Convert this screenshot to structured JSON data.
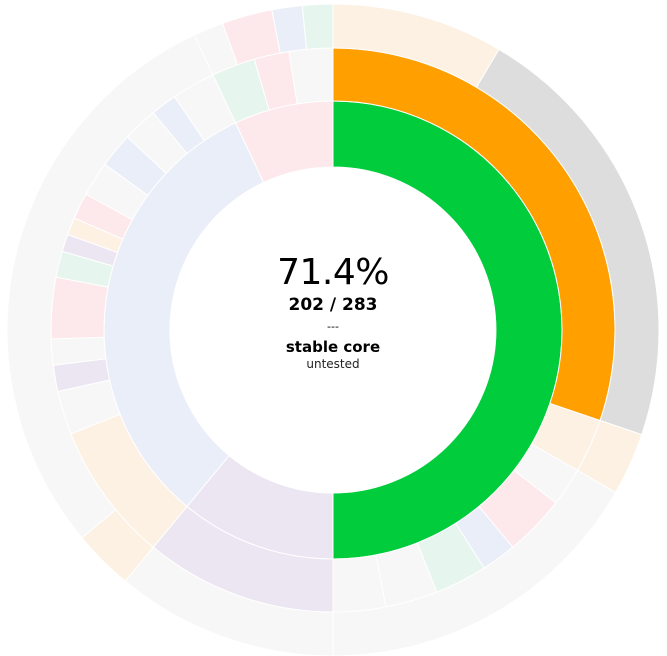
{
  "center": {
    "percentage": "71.4%",
    "count": "202 / 283",
    "separator": "---",
    "name": "stable core",
    "status": "untested"
  },
  "colors": {
    "covered": "#00cc3c",
    "partial": "#ff9f00",
    "uncovered": "#dddddd",
    "lavender": "#eaeef8",
    "pink": "#fde8ec",
    "peach": "#fdf1e3",
    "mauve": "#ece6f2",
    "mint": "#e6f5ee",
    "faint": "#f7f7f7"
  },
  "chart_data": {
    "type": "sunburst",
    "total": 283,
    "covered": 202,
    "rings": [
      {
        "ring": "inner",
        "segments": [
          {
            "start": 0.0,
            "end": 0.5,
            "color": "covered"
          },
          {
            "start": 0.5,
            "end": 0.61,
            "color": "mauve"
          },
          {
            "start": 0.61,
            "end": 0.93,
            "color": "lavender"
          },
          {
            "start": 0.93,
            "end": 1.0,
            "color": "pink"
          }
        ]
      },
      {
        "ring": "outer",
        "segments": [
          {
            "start": 0.0,
            "end": 0.302,
            "color": "partial"
          },
          {
            "start": 0.302,
            "end": 0.333,
            "color": "peach"
          },
          {
            "start": 0.333,
            "end": 0.355,
            "color": "faint"
          },
          {
            "start": 0.355,
            "end": 0.39,
            "color": "pink"
          },
          {
            "start": 0.39,
            "end": 0.41,
            "color": "lavender"
          },
          {
            "start": 0.41,
            "end": 0.44,
            "color": "mint"
          },
          {
            "start": 0.44,
            "end": 0.47,
            "color": "faint"
          },
          {
            "start": 0.47,
            "end": 0.5,
            "color": "faint"
          },
          {
            "start": 0.5,
            "end": 0.61,
            "color": "mauve"
          },
          {
            "start": 0.61,
            "end": 0.69,
            "color": "peach"
          },
          {
            "start": 0.69,
            "end": 0.715,
            "color": "faint"
          },
          {
            "start": 0.715,
            "end": 0.73,
            "color": "mauve"
          },
          {
            "start": 0.73,
            "end": 0.745,
            "color": "faint"
          },
          {
            "start": 0.745,
            "end": 0.78,
            "color": "pink"
          },
          {
            "start": 0.78,
            "end": 0.795,
            "color": "mint"
          },
          {
            "start": 0.795,
            "end": 0.805,
            "color": "mauve"
          },
          {
            "start": 0.805,
            "end": 0.815,
            "color": "peach"
          },
          {
            "start": 0.815,
            "end": 0.83,
            "color": "pink"
          },
          {
            "start": 0.83,
            "end": 0.85,
            "color": "faint"
          },
          {
            "start": 0.85,
            "end": 0.87,
            "color": "lavender"
          },
          {
            "start": 0.87,
            "end": 0.89,
            "color": "faint"
          },
          {
            "start": 0.89,
            "end": 0.905,
            "color": "lavender"
          },
          {
            "start": 0.905,
            "end": 0.93,
            "color": "faint"
          },
          {
            "start": 0.93,
            "end": 0.955,
            "color": "mint"
          },
          {
            "start": 0.955,
            "end": 0.975,
            "color": "pink"
          },
          {
            "start": 0.975,
            "end": 1.0,
            "color": "faint"
          }
        ]
      },
      {
        "ring": "outermost",
        "segments": [
          {
            "start": 0.0,
            "end": 0.085,
            "color": "peach"
          },
          {
            "start": 0.085,
            "end": 0.302,
            "color": "uncovered"
          },
          {
            "start": 0.302,
            "end": 0.333,
            "color": "peach"
          },
          {
            "start": 0.333,
            "end": 0.5,
            "color": "faint"
          },
          {
            "start": 0.5,
            "end": 0.61,
            "color": "faint"
          },
          {
            "start": 0.61,
            "end": 0.64,
            "color": "peach"
          },
          {
            "start": 0.64,
            "end": 0.93,
            "color": "faint"
          },
          {
            "start": 0.93,
            "end": 0.945,
            "color": "faint"
          },
          {
            "start": 0.945,
            "end": 0.97,
            "color": "pink"
          },
          {
            "start": 0.97,
            "end": 0.985,
            "color": "lavender"
          },
          {
            "start": 0.985,
            "end": 1.0,
            "color": "mint"
          }
        ]
      }
    ]
  }
}
